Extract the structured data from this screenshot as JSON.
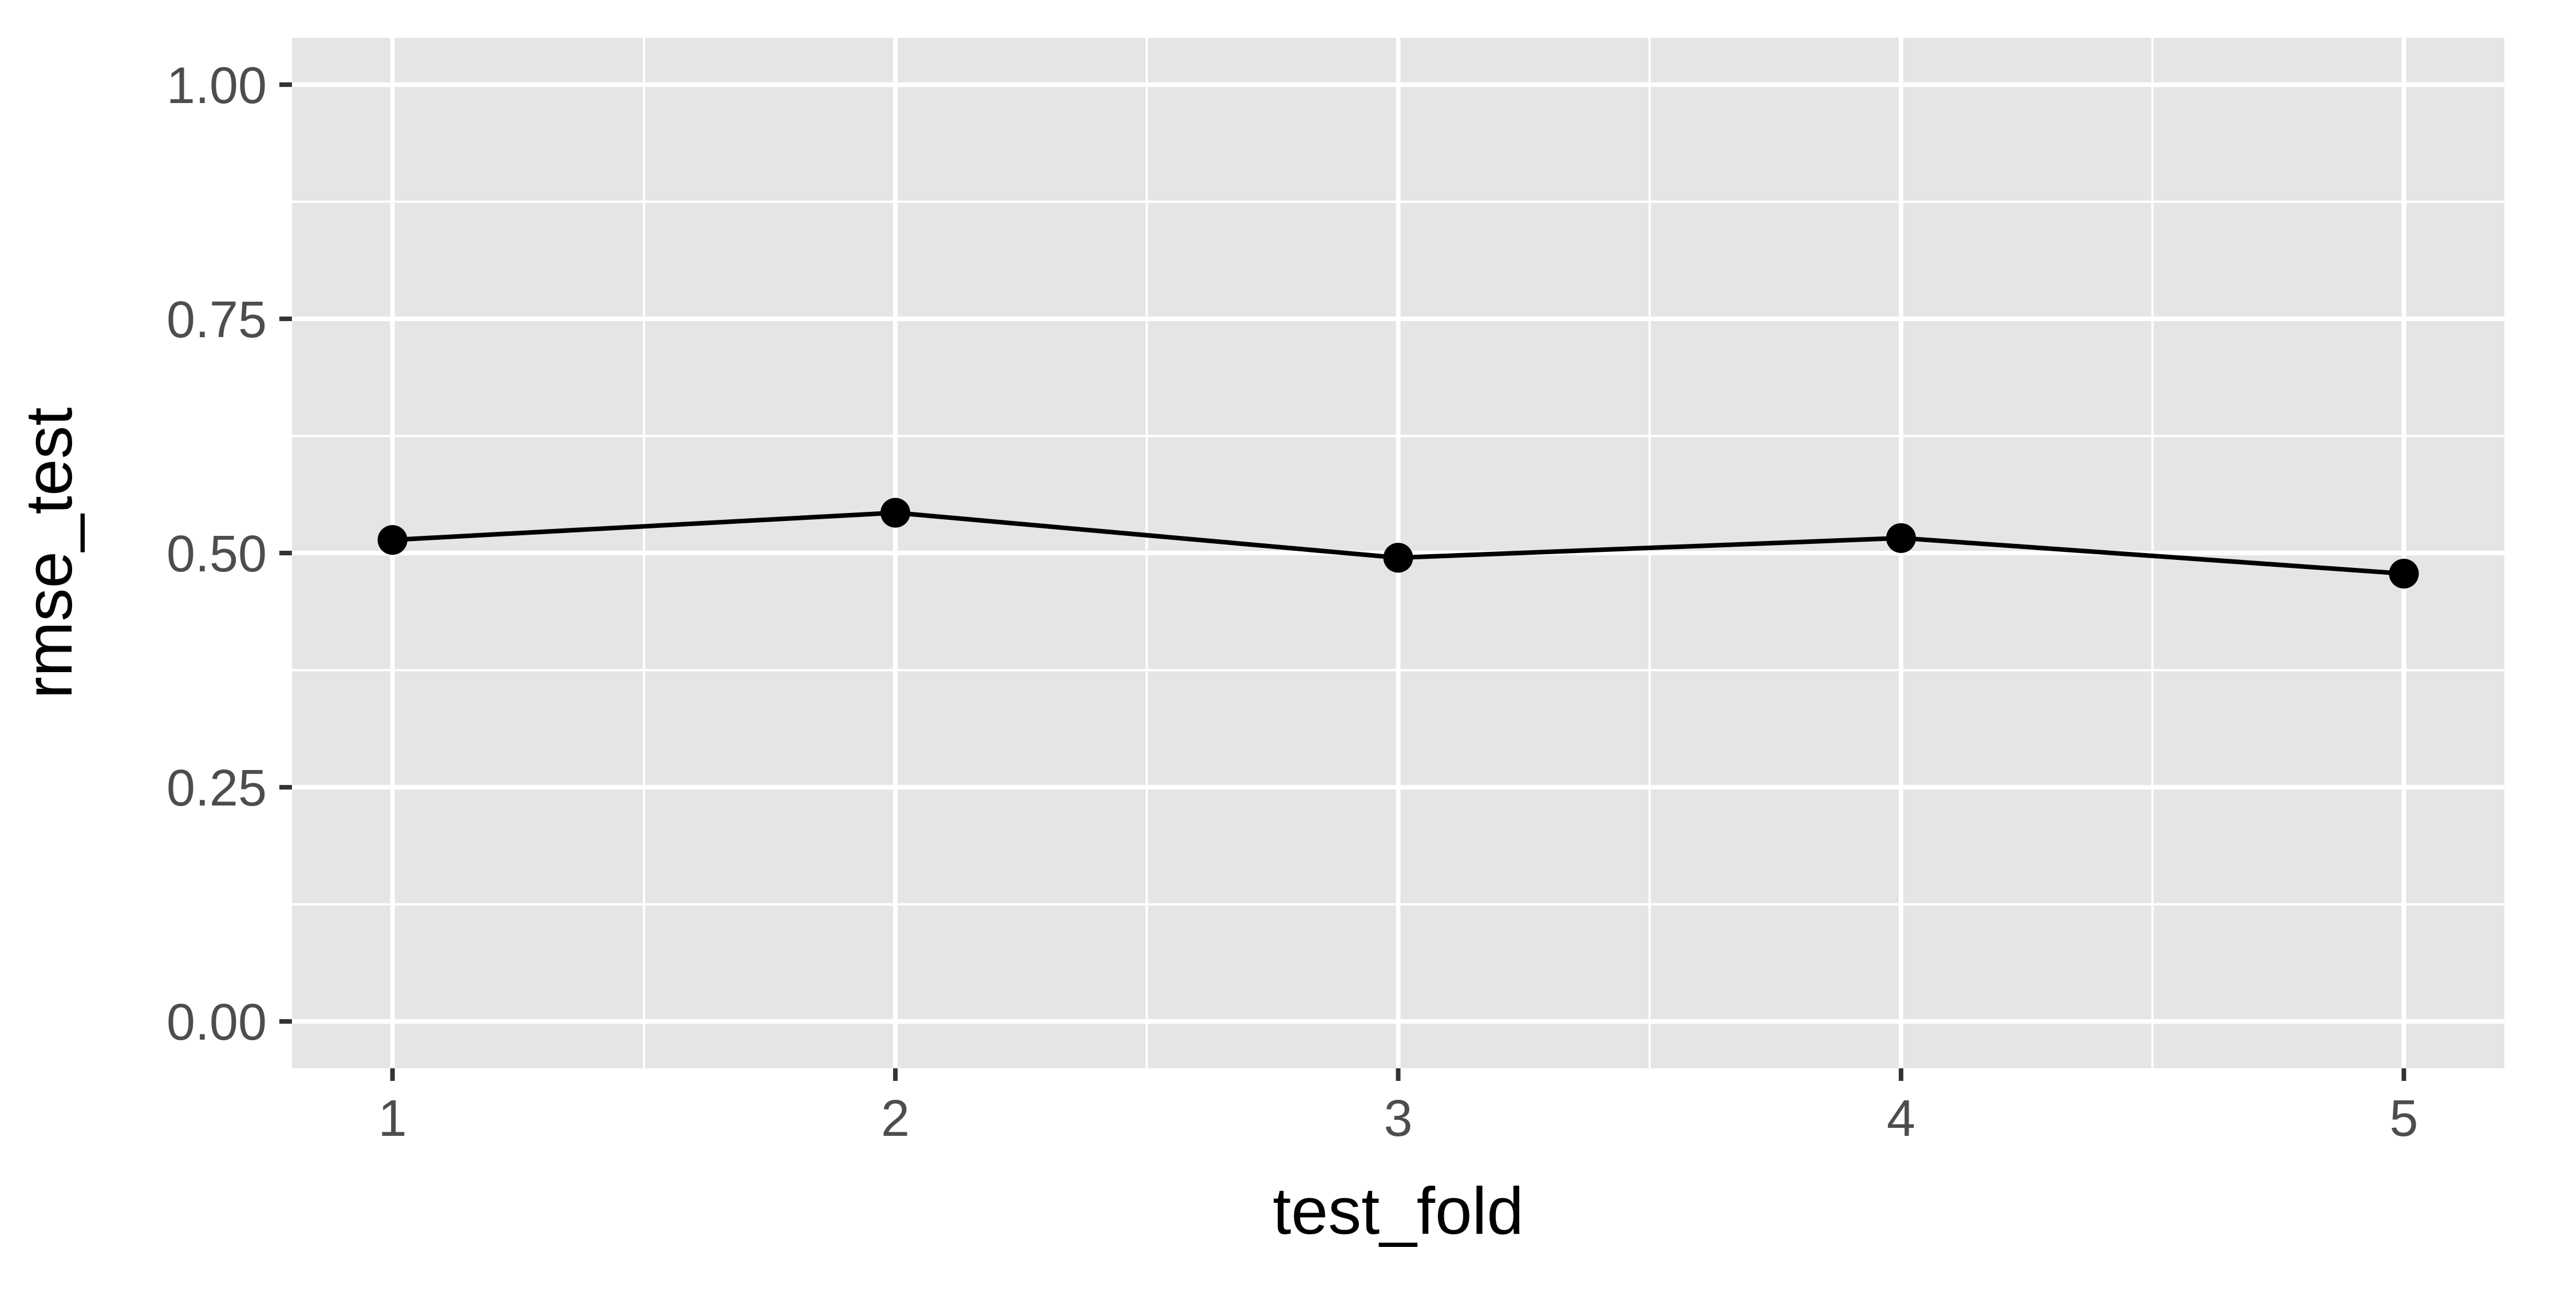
{
  "chart_data": {
    "type": "line",
    "title": "",
    "xlabel": "test_fold",
    "ylabel": "rmse_test",
    "x": [
      1,
      2,
      3,
      4,
      5
    ],
    "series": [
      {
        "values": [
          0.514,
          0.543,
          0.495,
          0.516,
          0.478
        ],
        "color": "#000000",
        "markers": true
      }
    ],
    "xlim": [
      0.8,
      5.2
    ],
    "ylim": [
      -0.05,
      1.05
    ],
    "x_ticks": [
      1,
      2,
      3,
      4,
      5
    ],
    "x_tick_labels": [
      "1",
      "2",
      "3",
      "4",
      "5"
    ],
    "y_ticks": [
      0,
      0.25,
      0.5,
      0.75,
      1
    ],
    "y_tick_labels": [
      "0.00",
      "0.25",
      "0.50",
      "0.75",
      "1.00"
    ],
    "grid": true,
    "legend": "none",
    "panel_color": "#e5e5e5",
    "grid_color": "#ffffff"
  }
}
